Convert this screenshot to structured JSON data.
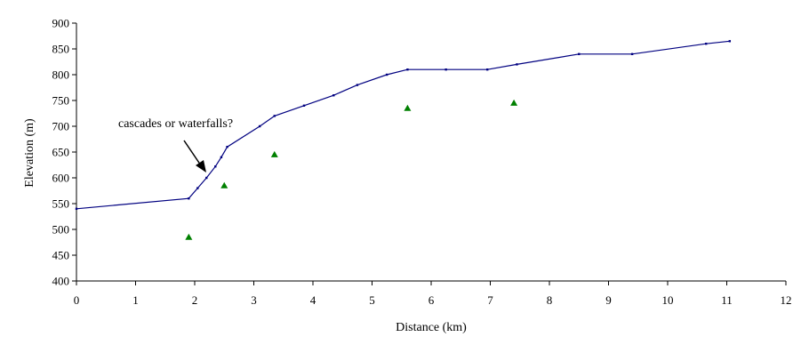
{
  "chart_data": {
    "type": "line",
    "title": "",
    "xlabel": "Distance (km)",
    "ylabel": "Elevation (m)",
    "xlim": [
      0,
      12
    ],
    "ylim": [
      400,
      900
    ],
    "xticks": [
      0,
      1,
      2,
      3,
      4,
      5,
      6,
      7,
      8,
      9,
      10,
      11,
      12
    ],
    "yticks": [
      400,
      450,
      500,
      550,
      600,
      650,
      700,
      750,
      800,
      850,
      900
    ],
    "grid": false,
    "legend": "none",
    "series": [
      {
        "type": "line",
        "color": "#000080",
        "points": [
          [
            0,
            540
          ],
          [
            1.9,
            560
          ],
          [
            2.05,
            580
          ],
          [
            2.2,
            600
          ],
          [
            2.35,
            622
          ],
          [
            2.45,
            640
          ],
          [
            2.55,
            660
          ],
          [
            3.1,
            700
          ],
          [
            3.35,
            720
          ],
          [
            3.85,
            740
          ],
          [
            4.35,
            760
          ],
          [
            4.75,
            780
          ],
          [
            5.25,
            800
          ],
          [
            5.6,
            810
          ],
          [
            6.25,
            810
          ],
          [
            6.95,
            810
          ],
          [
            7.45,
            820
          ],
          [
            8.5,
            840
          ],
          [
            9.4,
            840
          ],
          [
            10.65,
            860
          ],
          [
            11.05,
            865
          ]
        ]
      },
      {
        "type": "scatter",
        "marker": "triangle",
        "color": "#008000",
        "points": [
          [
            1.9,
            485
          ],
          [
            2.5,
            585
          ],
          [
            3.35,
            645
          ],
          [
            5.6,
            735
          ],
          [
            7.4,
            745
          ]
        ]
      }
    ],
    "annotation": {
      "text": "cascades or waterfalls?",
      "x": 2.1,
      "y": 600
    }
  }
}
